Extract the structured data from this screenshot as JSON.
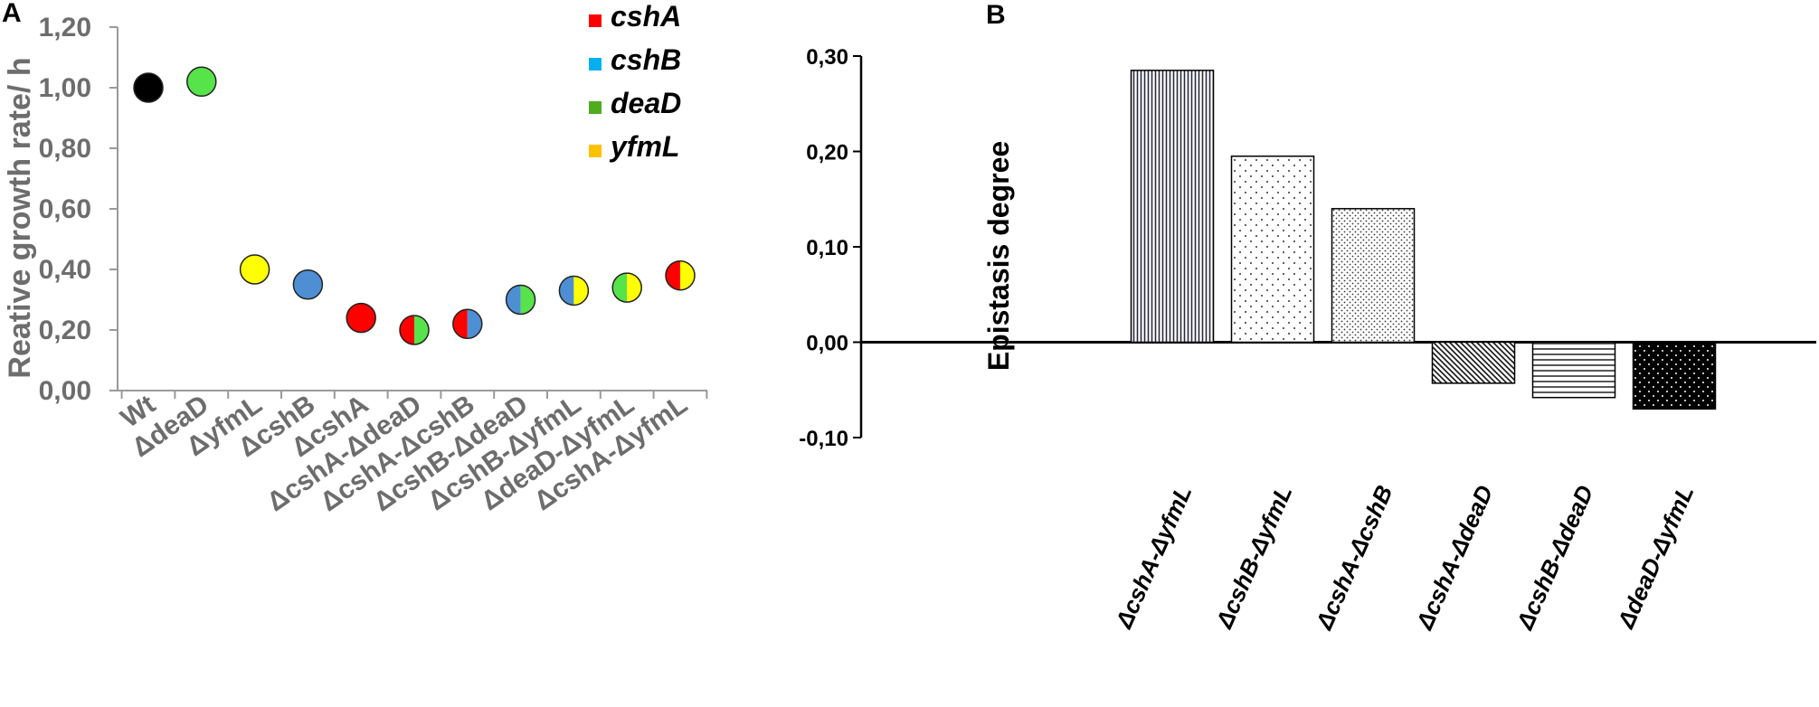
{
  "panels": {
    "a": "A",
    "b": "B"
  },
  "chart_data": [
    {
      "type": "scatter",
      "panel": "A",
      "ylabel": "Reative growth rate/ h",
      "xlabel": "",
      "ylim": [
        0,
        1.2
      ],
      "yticks": [
        "0,00",
        "0,20",
        "0,40",
        "0,60",
        "0,80",
        "1,00",
        "1,20"
      ],
      "categories": [
        "Wt",
        "ΔdeaD",
        "ΔyfmL",
        "ΔcshB",
        "ΔcshA",
        "ΔcshA-ΔdeaD",
        "ΔcshA-ΔcshB",
        "ΔcshB-ΔdeaD",
        "ΔcshB-ΔyfmL",
        "ΔdeaD-ΔyfmL",
        "ΔcshA-ΔyfmL"
      ],
      "values": [
        1.0,
        1.02,
        0.4,
        0.35,
        0.24,
        0.2,
        0.22,
        0.3,
        0.33,
        0.34,
        0.38
      ],
      "marker_colors": [
        [
          "#000000"
        ],
        [
          "#57e34a"
        ],
        [
          "#ffff00"
        ],
        [
          "#4e8fd4"
        ],
        [
          "#ff0000"
        ],
        [
          "#ff0000",
          "#57e34a"
        ],
        [
          "#ff0000",
          "#4e8fd4"
        ],
        [
          "#4e8fd4",
          "#57e34a"
        ],
        [
          "#4e8fd4",
          "#ffff00"
        ],
        [
          "#57e34a",
          "#ffff00"
        ],
        [
          "#ff0000",
          "#ffff00"
        ]
      ],
      "legend": [
        {
          "label": "cshA",
          "color": "#ff0000"
        },
        {
          "label": "cshB",
          "color": "#00b0f0"
        },
        {
          "label": "deaD",
          "color": "#4ead1e"
        },
        {
          "label": "yfmL",
          "color": "#ffc000"
        }
      ],
      "legend_position": "top-right"
    },
    {
      "type": "bar",
      "panel": "B",
      "ylabel": "Epistasis  degree",
      "xlabel": "",
      "ylim": [
        -0.1,
        0.3
      ],
      "yticks": [
        "-0,10",
        "0,00",
        "0,10",
        "0,20",
        "0,30"
      ],
      "categories": [
        "ΔcshA-ΔyfmL",
        "ΔcshB-ΔyfmL",
        "ΔcshA-ΔcshB",
        "ΔcshA-ΔdeaD",
        "ΔcshB-ΔdeaD",
        "ΔdeaD-ΔyfmL"
      ],
      "values": [
        0.285,
        0.195,
        0.14,
        -0.043,
        -0.058,
        -0.07
      ],
      "patterns": [
        "vlines",
        "sparse-dots",
        "dense-dots",
        "diagonal",
        "hlines",
        "black-dots"
      ],
      "grid": false
    }
  ]
}
